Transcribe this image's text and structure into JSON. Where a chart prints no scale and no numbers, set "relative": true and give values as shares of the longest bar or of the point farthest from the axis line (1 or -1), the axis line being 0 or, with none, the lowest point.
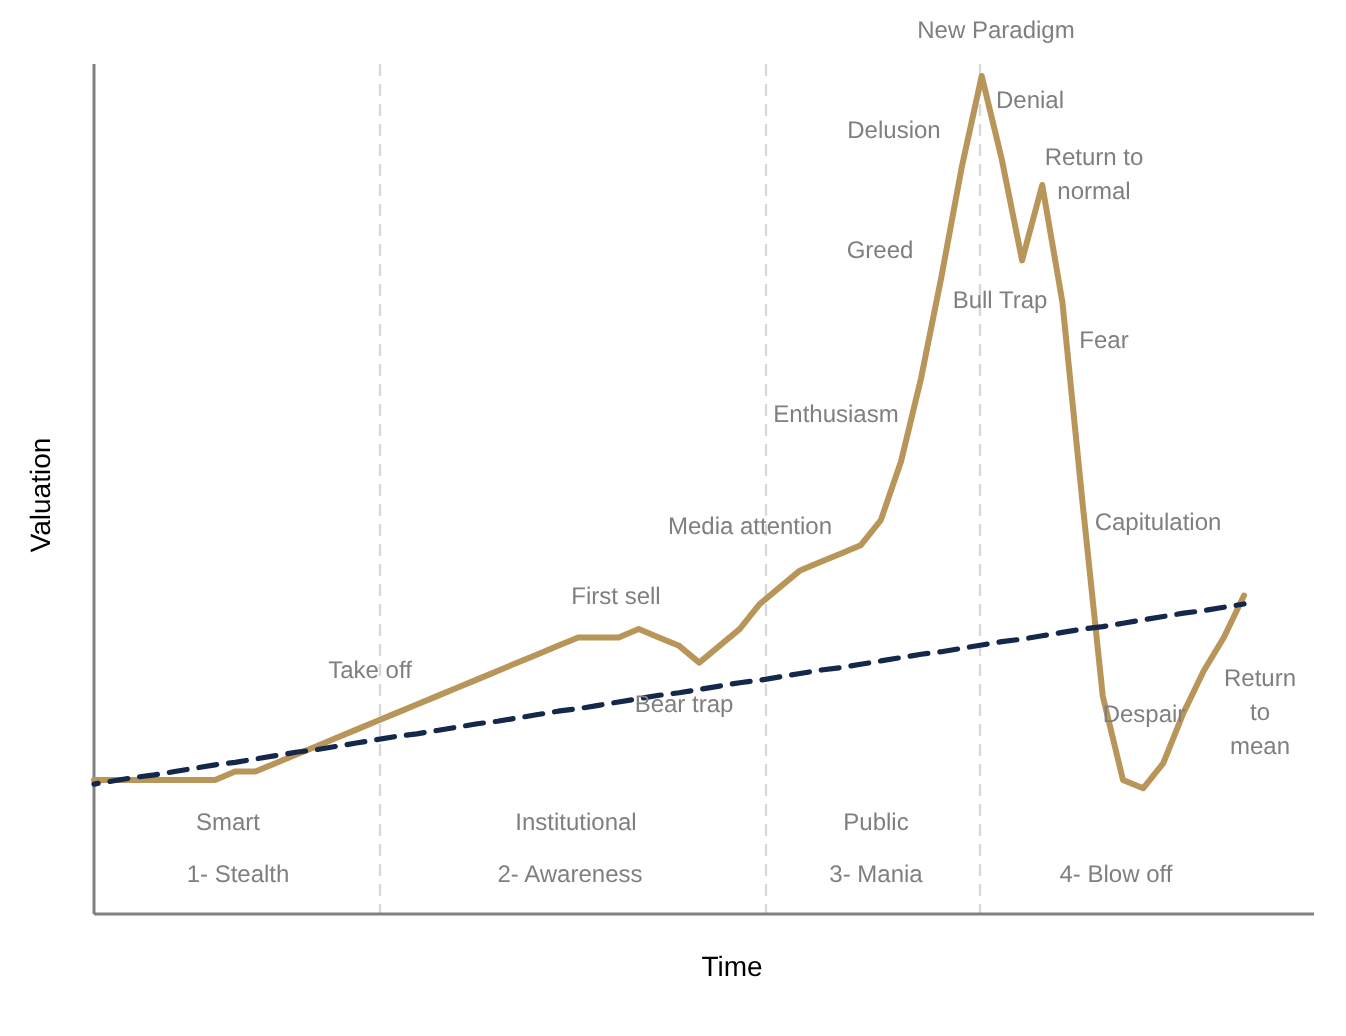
{
  "chart_data": {
    "type": "line",
    "relative": true,
    "xlabel": "Time",
    "ylabel": "Valuation",
    "categories": [
      null,
      null,
      null,
      null,
      null,
      null,
      null,
      null,
      null,
      null,
      null,
      null,
      null,
      null,
      null,
      null,
      null,
      null,
      null,
      null,
      null,
      null,
      null,
      null,
      null,
      null,
      null,
      null,
      null,
      null,
      null,
      null,
      null,
      null,
      null,
      null,
      null,
      null,
      null,
      null,
      null,
      null,
      null,
      null,
      null,
      null,
      null,
      null,
      null,
      null,
      null,
      null,
      null,
      null,
      null,
      null,
      null,
      null
    ],
    "series": [
      {
        "color": "#b8965a",
        "line_style": "solid",
        "values": [
          0.16,
          0.16,
          0.16,
          0.16,
          0.16,
          0.16,
          0.16,
          0.17,
          0.17,
          0.18,
          0.19,
          0.2,
          0.21,
          0.22,
          0.23,
          0.24,
          0.25,
          0.26,
          0.27,
          0.28,
          0.29,
          0.3,
          0.31,
          0.32,
          0.33,
          0.33,
          0.33,
          0.34,
          0.33,
          0.32,
          0.3,
          0.32,
          0.34,
          0.37,
          0.39,
          0.41,
          0.42,
          0.43,
          0.44,
          0.47,
          0.54,
          0.64,
          0.76,
          0.89,
          1,
          0.9,
          0.78,
          0.87,
          0.73,
          0.49,
          0.26,
          0.16,
          0.15,
          0.18,
          0.24,
          0.29,
          0.33,
          0.38
        ]
      },
      {
        "color": "#14284b",
        "line_style": "dashed",
        "values": [
          0.155,
          0.159,
          0.163,
          0.166,
          0.17,
          0.174,
          0.178,
          0.181,
          0.185,
          0.189,
          0.193,
          0.196,
          0.2,
          0.204,
          0.208,
          0.212,
          0.215,
          0.219,
          0.223,
          0.227,
          0.23,
          0.234,
          0.238,
          0.242,
          0.245,
          0.249,
          0.253,
          0.257,
          0.261,
          0.264,
          0.268,
          0.272,
          0.276,
          0.279,
          0.283,
          0.287,
          0.291,
          0.294,
          0.298,
          0.302,
          0.306,
          0.31,
          0.313,
          0.317,
          0.321,
          0.325,
          0.328,
          0.332,
          0.336,
          0.34,
          0.343,
          0.347,
          0.351,
          0.355,
          0.359,
          0.362,
          0.366,
          0.37
        ]
      }
    ],
    "annotations": [
      "New Paradigm",
      "Denial",
      "Delusion",
      "Return to\nnormal",
      "Greed",
      "Bull Trap",
      "Fear",
      "Enthusiasm",
      "Media attention",
      "Capitulation",
      "First sell",
      "Take off",
      "Bear trap",
      "Despair",
      "Return\nto\nmean",
      "Smart",
      "1- Stealth",
      "Institutional",
      "2- Awareness",
      "Public",
      "3- Mania",
      "4- Blow off"
    ]
  }
}
